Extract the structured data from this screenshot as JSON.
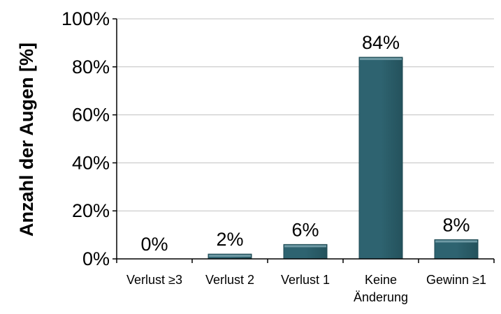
{
  "chart_data": {
    "type": "bar",
    "categories": [
      "Verlust ≥3",
      "Verlust 2",
      "Verlust 1",
      "Keine Änderung",
      "Gewinn ≥1"
    ],
    "category_lines": [
      [
        "Verlust ≥3"
      ],
      [
        "Verlust 2"
      ],
      [
        "Verlust 1"
      ],
      [
        "Keine",
        "Änderung"
      ],
      [
        "Gewinn ≥1"
      ]
    ],
    "values": [
      0,
      2,
      6,
      84,
      8
    ],
    "data_labels": [
      "0%",
      "2%",
      "6%",
      "84%",
      "8%"
    ],
    "title": "",
    "xlabel": "",
    "ylabel": "Anzahl der Augen [%]",
    "ylim": [
      0,
      100
    ],
    "yticks": [
      0,
      20,
      40,
      60,
      80,
      100
    ],
    "ytick_labels": [
      "0%",
      "20%",
      "40%",
      "60%",
      "80%",
      "100%"
    ],
    "grid": true,
    "legend": "none",
    "bar_color": "#2e6370",
    "bar_highlight_color": "#6f9aa5",
    "grid_color": "#c0c0c0"
  }
}
